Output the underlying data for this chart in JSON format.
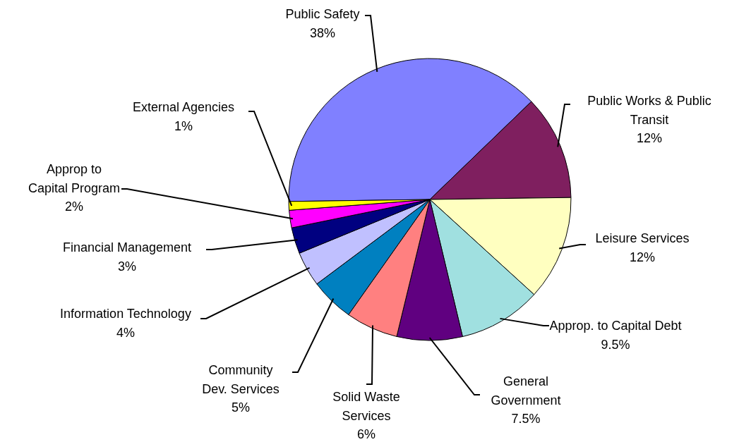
{
  "chart_data": {
    "type": "pie",
    "categories": [
      "Public Safety",
      "Public Works & Public Transit",
      "Leisure Services",
      "Approp. to Capital Debt",
      "General Government",
      "Solid Waste Services",
      "Community Dev. Services",
      "Information Technology",
      "Financial Management",
      "Approp to Capital Program",
      "External Agencies"
    ],
    "values": [
      38,
      12,
      12,
      9.5,
      7.5,
      6,
      5,
      4,
      3,
      2,
      1
    ],
    "colors": [
      "#8080ff",
      "#7f1f5f",
      "#ffffc0",
      "#a0e0e0",
      "#600080",
      "#ff8080",
      "#0080c0",
      "#c0c0ff",
      "#000080",
      "#ff00ff",
      "#ffff00"
    ],
    "value_labels": [
      "38%",
      "12%",
      "12%",
      "9.5%",
      "7.5%",
      "6%",
      "5%",
      "4%",
      "3%",
      "2%",
      "1%"
    ]
  }
}
